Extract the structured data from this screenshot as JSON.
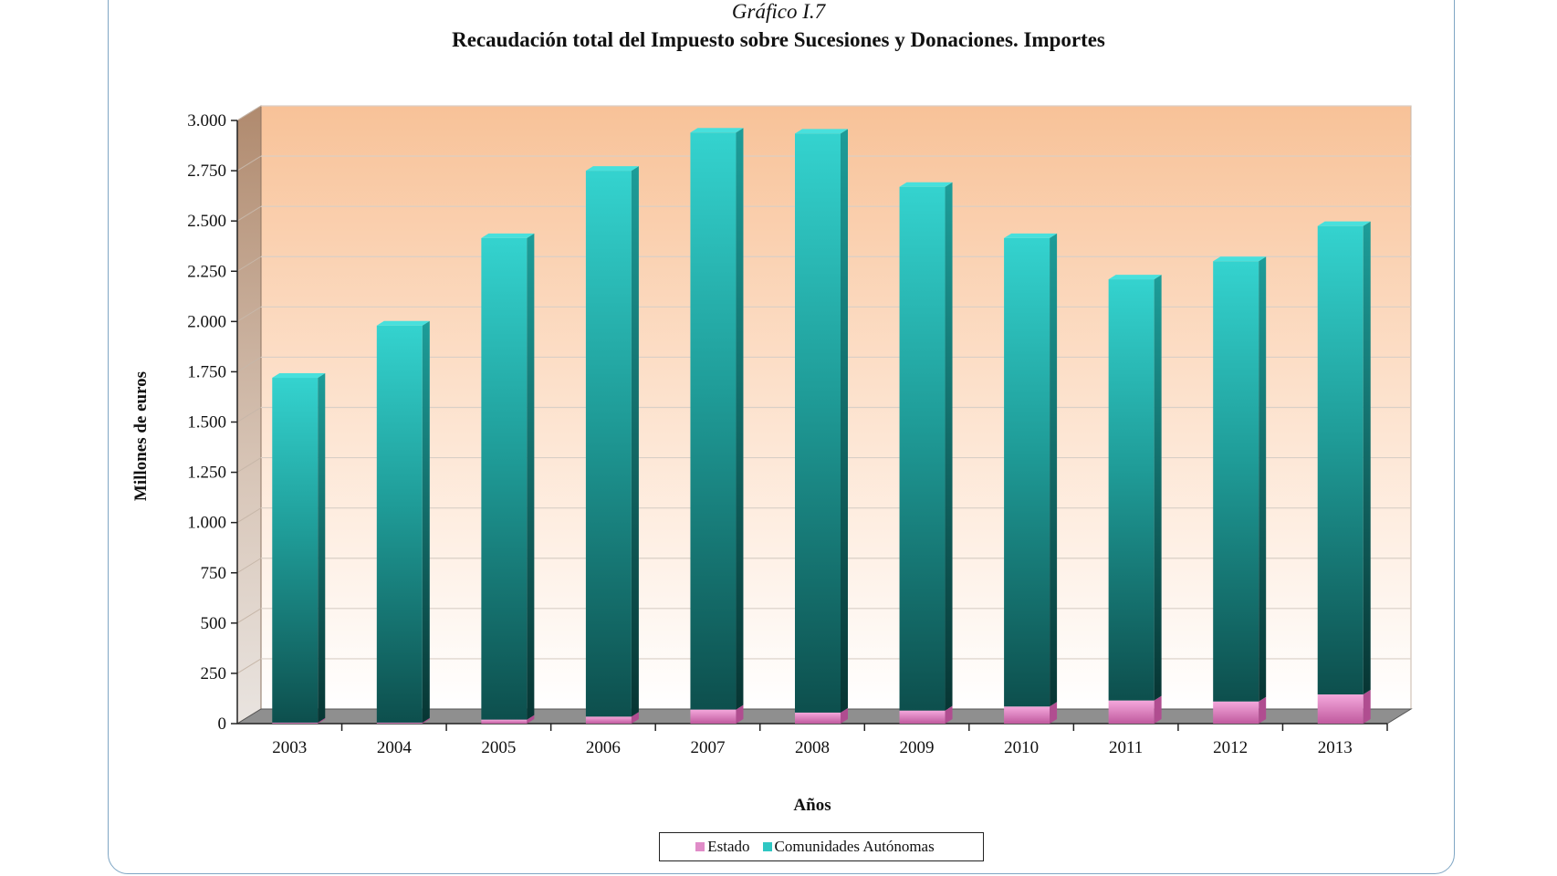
{
  "colors": {
    "estado": "#e08cc8",
    "comunidades": "#2fc7c3",
    "background_top": "#f9c49a",
    "frame": "#7fa6c4"
  },
  "chart_data": {
    "type": "bar",
    "stacked": true,
    "caption": "Gráfico I.7",
    "title": "Recaudación total del Impuesto sobre Sucesiones y Donaciones.  Importes",
    "xlabel": "Años",
    "ylabel": "Millones de euros",
    "ylim": [
      0,
      3000
    ],
    "yticks": [
      0,
      250,
      500,
      750,
      1000,
      1250,
      1500,
      1750,
      2000,
      2250,
      2500,
      2750,
      3000
    ],
    "ytick_labels": [
      "0",
      "250",
      "500",
      "750",
      "1.000",
      "1.250",
      "1.500",
      "1.750",
      "2.000",
      "2.250",
      "2.500",
      "2.750",
      "3.000"
    ],
    "categories": [
      "2003",
      "2004",
      "2005",
      "2006",
      "2007",
      "2008",
      "2009",
      "2010",
      "2011",
      "2012",
      "2013"
    ],
    "grid": true,
    "legend": "bottom",
    "series": [
      {
        "name": "Estado",
        "values": [
          5,
          5,
          20,
          35,
          70,
          55,
          65,
          85,
          115,
          110,
          145
        ]
      },
      {
        "name": "Comunidades Autónomas",
        "values": [
          1715,
          1975,
          2395,
          2715,
          2870,
          2880,
          2605,
          2330,
          2095,
          2190,
          2330
        ]
      }
    ]
  }
}
